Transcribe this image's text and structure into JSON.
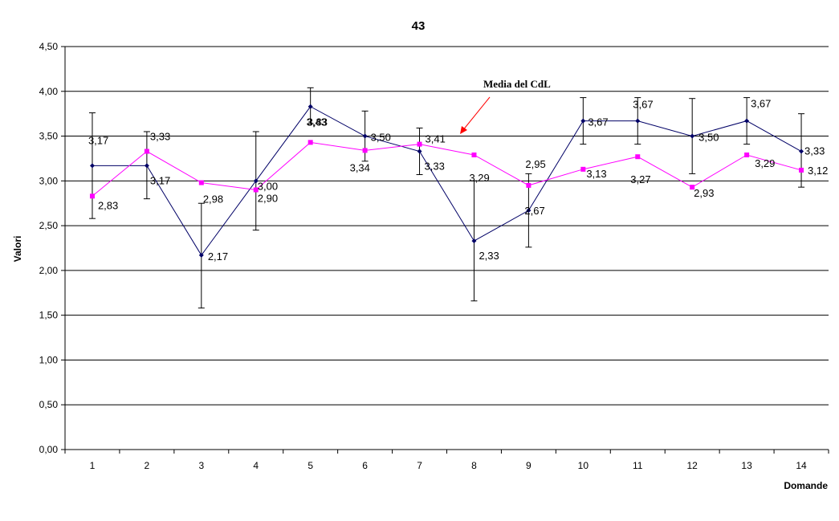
{
  "chart_data": {
    "type": "line",
    "title": "43",
    "xlabel": "Domande",
    "ylabel": "Valori",
    "categories": [
      "1",
      "2",
      "3",
      "4",
      "5",
      "6",
      "7",
      "8",
      "9",
      "10",
      "11",
      "12",
      "13",
      "14"
    ],
    "ylim": [
      0,
      4.5
    ],
    "ystep": 0.5,
    "yticks": [
      "0,00",
      "0,50",
      "1,00",
      "1,50",
      "2,00",
      "2,50",
      "3,00",
      "3,50",
      "4,00",
      "4,50"
    ],
    "grid": true,
    "series": [
      {
        "color": "#000066",
        "marker": "diamond",
        "values": [
          3.17,
          3.17,
          2.17,
          3.0,
          3.83,
          3.5,
          3.33,
          2.33,
          2.67,
          3.67,
          3.67,
          3.5,
          3.67,
          3.33
        ],
        "labels": [
          "3,17",
          "3,17",
          "2,17",
          "3,00",
          "3,83",
          "3,50",
          "3,33",
          "2,33",
          "2,67",
          "3,67",
          "3,67",
          "3,50",
          "3,67",
          "3,33"
        ],
        "error_low": [
          2.58,
          2.8,
          1.58,
          2.45,
          3.64,
          3.22,
          3.07,
          1.66,
          2.26,
          3.41,
          3.41,
          3.08,
          3.41,
          2.93
        ],
        "error_high": [
          3.76,
          3.55,
          2.75,
          3.55,
          4.04,
          3.78,
          3.59,
          3.0,
          3.08,
          3.93,
          3.93,
          3.92,
          3.93,
          3.75
        ]
      },
      {
        "color": "#ff00ff",
        "marker": "square",
        "values": [
          2.83,
          3.33,
          2.98,
          2.9,
          3.43,
          3.34,
          3.41,
          3.29,
          2.95,
          3.13,
          3.27,
          2.93,
          3.29,
          3.12
        ],
        "labels": [
          "2,83",
          "3,33",
          "2,98",
          "2,90",
          "3,43",
          "3,34",
          "3,41",
          "3,29",
          "2,95",
          "3,13",
          "3,27",
          "2,93",
          "3,29",
          "3,12"
        ]
      }
    ],
    "annotation": {
      "text": "Media del CdL",
      "color": "#ff0000"
    }
  }
}
